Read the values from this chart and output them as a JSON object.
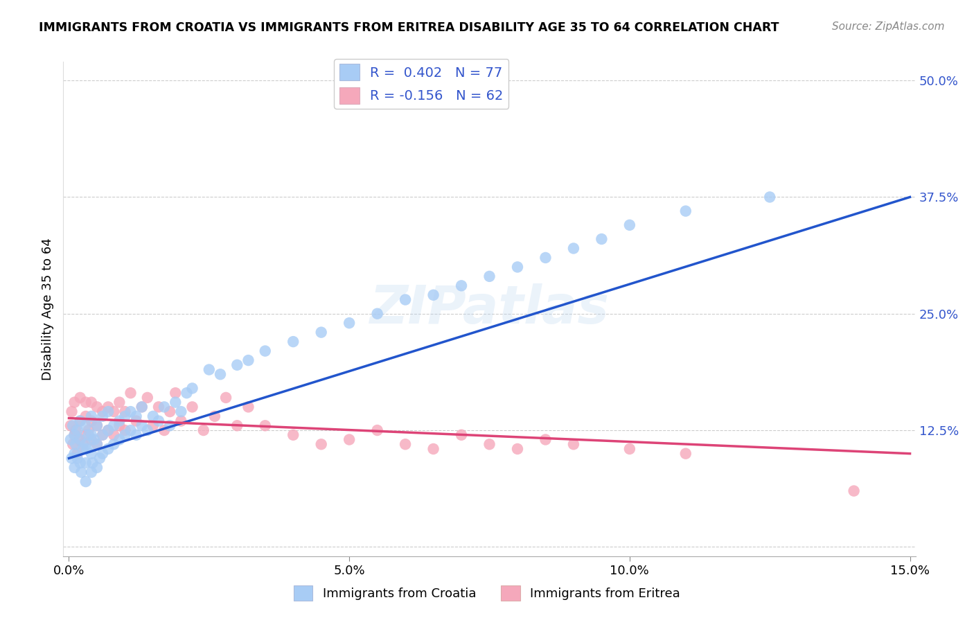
{
  "title": "IMMIGRANTS FROM CROATIA VS IMMIGRANTS FROM ERITREA DISABILITY AGE 35 TO 64 CORRELATION CHART",
  "source": "Source: ZipAtlas.com",
  "ylabel": "Disability Age 35 to 64",
  "xlim": [
    -0.001,
    0.151
  ],
  "ylim": [
    -0.01,
    0.52
  ],
  "xticks": [
    0.0,
    0.05,
    0.1,
    0.15
  ],
  "xticklabels": [
    "0.0%",
    "5.0%",
    "10.0%",
    "15.0%"
  ],
  "yticks": [
    0.0,
    0.125,
    0.25,
    0.375,
    0.5
  ],
  "yticklabels": [
    "",
    "12.5%",
    "25.0%",
    "37.5%",
    "50.0%"
  ],
  "croatia_R": 0.402,
  "croatia_N": 77,
  "eritrea_R": -0.156,
  "eritrea_N": 62,
  "croatia_color": "#a8ccf5",
  "eritrea_color": "#f5a8bb",
  "croatia_line_color": "#2255cc",
  "eritrea_line_color": "#dd4477",
  "legend_label_croatia": "Immigrants from Croatia",
  "legend_label_eritrea": "Immigrants from Eritrea",
  "watermark": "ZIPatlas",
  "croatia_x": [
    0.0003,
    0.0005,
    0.0007,
    0.001,
    0.001,
    0.001,
    0.0012,
    0.0015,
    0.0015,
    0.002,
    0.002,
    0.002,
    0.0022,
    0.0025,
    0.003,
    0.003,
    0.003,
    0.003,
    0.0032,
    0.0035,
    0.004,
    0.004,
    0.004,
    0.004,
    0.0042,
    0.0045,
    0.005,
    0.005,
    0.005,
    0.0055,
    0.006,
    0.006,
    0.006,
    0.007,
    0.007,
    0.007,
    0.008,
    0.008,
    0.009,
    0.009,
    0.01,
    0.01,
    0.011,
    0.011,
    0.012,
    0.012,
    0.013,
    0.013,
    0.014,
    0.015,
    0.016,
    0.017,
    0.018,
    0.019,
    0.02,
    0.021,
    0.022,
    0.025,
    0.027,
    0.03,
    0.032,
    0.035,
    0.04,
    0.045,
    0.05,
    0.055,
    0.06,
    0.065,
    0.07,
    0.075,
    0.08,
    0.085,
    0.09,
    0.095,
    0.1,
    0.11,
    0.125
  ],
  "croatia_y": [
    0.115,
    0.095,
    0.13,
    0.1,
    0.12,
    0.085,
    0.11,
    0.095,
    0.125,
    0.09,
    0.115,
    0.135,
    0.08,
    0.105,
    0.09,
    0.11,
    0.13,
    0.07,
    0.105,
    0.12,
    0.08,
    0.1,
    0.12,
    0.14,
    0.09,
    0.115,
    0.085,
    0.11,
    0.13,
    0.095,
    0.1,
    0.12,
    0.14,
    0.105,
    0.125,
    0.145,
    0.11,
    0.13,
    0.115,
    0.135,
    0.12,
    0.14,
    0.125,
    0.145,
    0.12,
    0.14,
    0.13,
    0.15,
    0.125,
    0.14,
    0.135,
    0.15,
    0.13,
    0.155,
    0.145,
    0.165,
    0.17,
    0.19,
    0.185,
    0.195,
    0.2,
    0.21,
    0.22,
    0.23,
    0.24,
    0.25,
    0.265,
    0.27,
    0.28,
    0.29,
    0.3,
    0.31,
    0.32,
    0.33,
    0.345,
    0.36,
    0.375
  ],
  "eritrea_x": [
    0.0003,
    0.0005,
    0.0007,
    0.001,
    0.001,
    0.0012,
    0.0015,
    0.002,
    0.002,
    0.002,
    0.0025,
    0.003,
    0.003,
    0.003,
    0.0035,
    0.004,
    0.004,
    0.004,
    0.005,
    0.005,
    0.005,
    0.006,
    0.006,
    0.007,
    0.007,
    0.008,
    0.008,
    0.009,
    0.009,
    0.01,
    0.01,
    0.011,
    0.012,
    0.013,
    0.014,
    0.015,
    0.016,
    0.017,
    0.018,
    0.019,
    0.02,
    0.022,
    0.024,
    0.026,
    0.028,
    0.03,
    0.032,
    0.035,
    0.04,
    0.045,
    0.05,
    0.055,
    0.06,
    0.065,
    0.07,
    0.075,
    0.08,
    0.085,
    0.09,
    0.1,
    0.11,
    0.14
  ],
  "eritrea_y": [
    0.13,
    0.145,
    0.11,
    0.12,
    0.155,
    0.125,
    0.1,
    0.115,
    0.135,
    0.16,
    0.11,
    0.12,
    0.14,
    0.155,
    0.125,
    0.115,
    0.135,
    0.155,
    0.11,
    0.13,
    0.15,
    0.12,
    0.145,
    0.125,
    0.15,
    0.12,
    0.145,
    0.13,
    0.155,
    0.125,
    0.145,
    0.165,
    0.135,
    0.15,
    0.16,
    0.13,
    0.15,
    0.125,
    0.145,
    0.165,
    0.135,
    0.15,
    0.125,
    0.14,
    0.16,
    0.13,
    0.15,
    0.13,
    0.12,
    0.11,
    0.115,
    0.125,
    0.11,
    0.105,
    0.12,
    0.11,
    0.105,
    0.115,
    0.11,
    0.105,
    0.1,
    0.06
  ],
  "croatia_line_x": [
    0.0,
    0.15
  ],
  "croatia_line_y": [
    0.095,
    0.375
  ],
  "eritrea_line_x": [
    0.0,
    0.15
  ],
  "eritrea_line_y": [
    0.138,
    0.1
  ]
}
